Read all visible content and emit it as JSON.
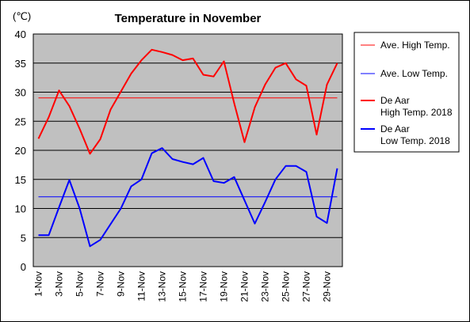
{
  "chart_data": {
    "type": "line",
    "title": "Temperature in November",
    "ylabel": "(℃)",
    "xlabel": "",
    "ylim": [
      0,
      40
    ],
    "yticks": [
      0,
      5,
      10,
      15,
      20,
      25,
      30,
      35,
      40
    ],
    "grid": true,
    "legend_position": "right",
    "x": [
      1,
      2,
      3,
      4,
      5,
      6,
      7,
      8,
      9,
      10,
      11,
      12,
      13,
      14,
      15,
      16,
      17,
      18,
      19,
      20,
      21,
      22,
      23,
      24,
      25,
      26,
      27,
      28,
      29,
      30
    ],
    "xtick_labels": [
      "1-Nov",
      "3-Nov",
      "5-Nov",
      "7-Nov",
      "9-Nov",
      "11-Nov",
      "13-Nov",
      "15-Nov",
      "17-Nov",
      "19-Nov",
      "21-Nov",
      "23-Nov",
      "25-Nov",
      "27-Nov",
      "29-Nov"
    ],
    "xtick_days": [
      1,
      3,
      5,
      7,
      9,
      11,
      13,
      15,
      17,
      19,
      21,
      23,
      25,
      27,
      29
    ],
    "series": [
      {
        "name": "Ave. High Temp.",
        "color": "#ff0000",
        "width": 1,
        "values": [
          29,
          29,
          29,
          29,
          29,
          29,
          29,
          29,
          29,
          29,
          29,
          29,
          29,
          29,
          29,
          29,
          29,
          29,
          29,
          29,
          29,
          29,
          29,
          29,
          29,
          29,
          29,
          29,
          29,
          29
        ]
      },
      {
        "name": "Ave. Low Temp.",
        "color": "#0000ff",
        "width": 1,
        "values": [
          12,
          12,
          12,
          12,
          12,
          12,
          12,
          12,
          12,
          12,
          12,
          12,
          12,
          12,
          12,
          12,
          12,
          12,
          12,
          12,
          12,
          12,
          12,
          12,
          12,
          12,
          12,
          12,
          12,
          12
        ]
      },
      {
        "name": "De Aar High Temp. 2018",
        "legend_lines": [
          "De Aar",
          "High Temp. 2018"
        ],
        "color": "#ff0000",
        "width": 2,
        "values": [
          22,
          25.7,
          30.3,
          27.6,
          23.7,
          19.4,
          21.9,
          27,
          30.1,
          33.2,
          35.5,
          37.3,
          36.9,
          36.4,
          35.5,
          35.8,
          33,
          32.7,
          35.3,
          28.1,
          21.4,
          27.4,
          31.3,
          34.2,
          35,
          32.2,
          31.1,
          22.7,
          31.3,
          35
        ]
      },
      {
        "name": "De Aar Low Temp. 2018",
        "legend_lines": [
          "De Aar",
          "Low Temp. 2018"
        ],
        "color": "#0000ff",
        "width": 2,
        "values": [
          5.4,
          5.4,
          10.2,
          14.9,
          10,
          3.5,
          4.6,
          7.3,
          10,
          13.8,
          15,
          19.5,
          20.4,
          18.5,
          18,
          17.6,
          18.7,
          14.7,
          14.4,
          15.4,
          11.4,
          7.4,
          11.1,
          15,
          17.3,
          17.3,
          16.3,
          8.6,
          7.5,
          16.9
        ]
      }
    ]
  }
}
